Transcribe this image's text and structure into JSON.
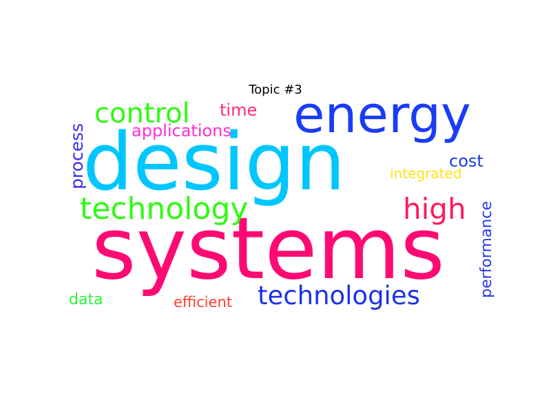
{
  "title": "Topic #3",
  "words": [
    {
      "text": "systems",
      "color": "#ff0a73"
    },
    {
      "text": "design",
      "color": "#00c6ff"
    },
    {
      "text": "energy",
      "color": "#1a3cf5"
    },
    {
      "text": "technology",
      "color": "#2dfb10"
    },
    {
      "text": "control",
      "color": "#2dfb10"
    },
    {
      "text": "technologies",
      "color": "#1a33e8"
    },
    {
      "text": "high",
      "color": "#ff1a5a"
    },
    {
      "text": "time",
      "color": "#ff2c6b"
    },
    {
      "text": "applications",
      "color": "#ff2fd2"
    },
    {
      "text": "process",
      "color": "#3a2fe6"
    },
    {
      "text": "cost",
      "color": "#1a3ae0"
    },
    {
      "text": "integrated",
      "color": "#ffe11a"
    },
    {
      "text": "performance",
      "color": "#2a3ae6"
    },
    {
      "text": "data",
      "color": "#27f53a"
    },
    {
      "text": "efficient",
      "color": "#ff3d2e"
    }
  ]
}
